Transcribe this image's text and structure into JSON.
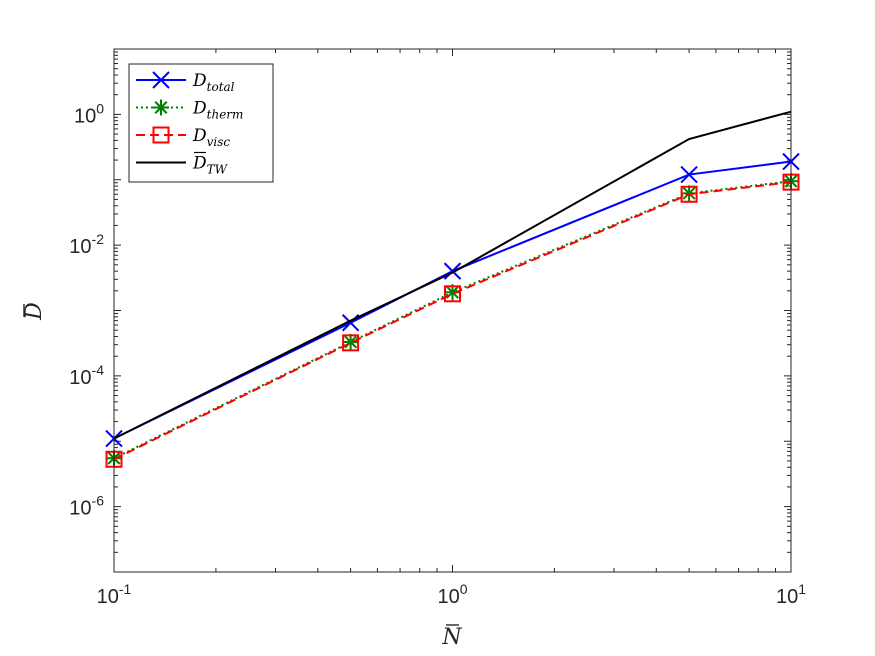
{
  "chart_data": {
    "type": "line",
    "xscale": "log",
    "yscale": "log",
    "xlim": [
      0.1,
      10
    ],
    "ylim": [
      1e-07,
      10
    ],
    "xlabel": {
      "base": "N",
      "accent": "bar"
    },
    "ylabel": {
      "base": "D",
      "accent": "bar"
    },
    "x_ticks": [
      {
        "base": "10",
        "exp": "-1",
        "value": 0.1
      },
      {
        "base": "10",
        "exp": "0",
        "value": 1
      },
      {
        "base": "10",
        "exp": "1",
        "value": 10
      }
    ],
    "y_ticks": [
      {
        "base": "10",
        "exp": "-6",
        "value": 1e-06
      },
      {
        "base": "10",
        "exp": "-4",
        "value": 0.0001
      },
      {
        "base": "10",
        "exp": "-2",
        "value": 0.01
      },
      {
        "base": "10",
        "exp": "0",
        "value": 1
      }
    ],
    "legend_position": "top-left",
    "grid": false,
    "series": [
      {
        "name": {
          "base": "D",
          "sub": "total",
          "accent": ""
        },
        "color": "#0000ff",
        "line": "solid",
        "marker": "x",
        "x": [
          0.1,
          0.5,
          1,
          5,
          10
        ],
        "y": [
          1.1e-05,
          0.00065,
          0.004,
          0.12,
          0.19
        ]
      },
      {
        "name": {
          "base": "D",
          "sub": "therm",
          "accent": ""
        },
        "color": "#008000",
        "line": "dotted",
        "marker": "asterisk",
        "x": [
          0.1,
          0.5,
          1,
          5,
          10
        ],
        "y": [
          5.5e-06,
          0.00033,
          0.0019,
          0.062,
          0.095
        ]
      },
      {
        "name": {
          "base": "D",
          "sub": "visc",
          "accent": ""
        },
        "color": "#ff0000",
        "line": "dashed",
        "marker": "square",
        "x": [
          0.1,
          0.5,
          1,
          5,
          10
        ],
        "y": [
          5.3e-06,
          0.00032,
          0.0018,
          0.06,
          0.092
        ]
      },
      {
        "name": {
          "base": "D",
          "sub": "TW",
          "accent": "bar"
        },
        "color": "#000000",
        "line": "solid",
        "marker": "none",
        "x": [
          0.1,
          0.5,
          1,
          5,
          10
        ],
        "y": [
          1.1e-05,
          0.0007,
          0.0038,
          0.42,
          1.1
        ]
      }
    ]
  }
}
